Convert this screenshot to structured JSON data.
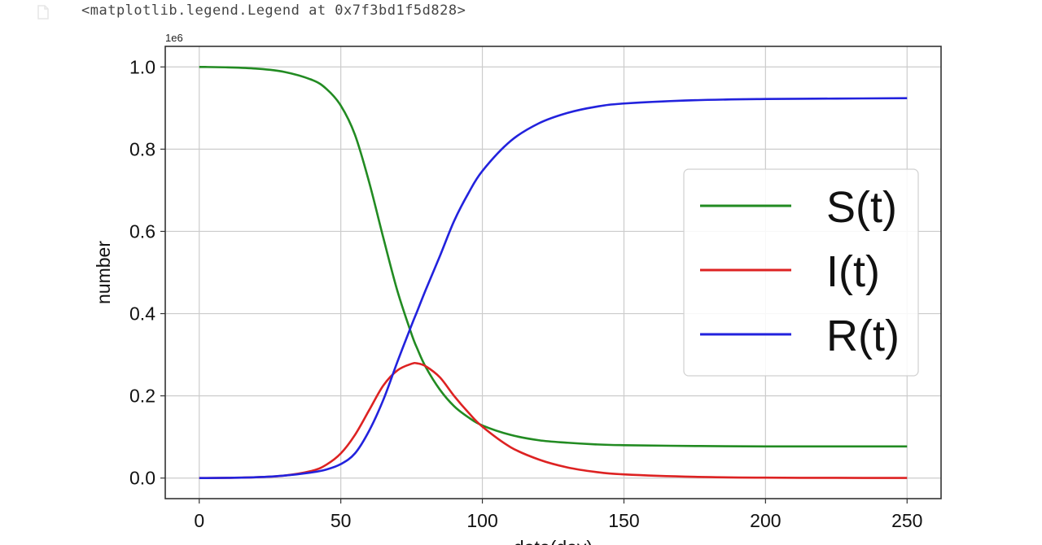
{
  "output": {
    "text": "<matplotlib.legend.Legend at 0x7f3bd1f5d828>"
  },
  "chart_data": {
    "type": "line",
    "title": "",
    "xlabel": "date(day)",
    "ylabel": "number",
    "y_offset_label": "1e6",
    "xlim": [
      -12,
      262
    ],
    "ylim": [
      -0.05,
      1.05
    ],
    "xticks": [
      0,
      50,
      100,
      150,
      200,
      250
    ],
    "xtick_labels": [
      "0",
      "50",
      "100",
      "150",
      "200",
      "250"
    ],
    "yticks": [
      0.0,
      0.2,
      0.4,
      0.6,
      0.8,
      1.0
    ],
    "ytick_labels": [
      "0.0",
      "0.2",
      "0.4",
      "0.6",
      "0.8",
      "1.0"
    ],
    "grid": true,
    "legend_position": "center-right",
    "x": [
      0,
      10,
      20,
      30,
      40,
      45,
      50,
      55,
      60,
      65,
      70,
      75,
      77,
      80,
      85,
      90,
      95,
      100,
      110,
      120,
      130,
      140,
      150,
      175,
      200,
      225,
      250
    ],
    "series": [
      {
        "name": "S(t)",
        "color": "#228b22",
        "values": [
          1.0,
          0.999,
          0.996,
          0.988,
          0.968,
          0.946,
          0.906,
          0.835,
          0.72,
          0.585,
          0.455,
          0.35,
          0.315,
          0.27,
          0.215,
          0.175,
          0.148,
          0.128,
          0.105,
          0.092,
          0.086,
          0.082,
          0.08,
          0.078,
          0.077,
          0.077,
          0.077
        ]
      },
      {
        "name": "I(t)",
        "color": "#dd2222",
        "values": [
          0.0,
          0.0005,
          0.002,
          0.006,
          0.018,
          0.033,
          0.06,
          0.105,
          0.165,
          0.225,
          0.262,
          0.278,
          0.279,
          0.272,
          0.245,
          0.2,
          0.16,
          0.125,
          0.075,
          0.045,
          0.026,
          0.015,
          0.009,
          0.003,
          0.001,
          0.0005,
          0.0003
        ]
      },
      {
        "name": "R(t)",
        "color": "#2222dd",
        "values": [
          0.0,
          0.0005,
          0.002,
          0.006,
          0.014,
          0.021,
          0.034,
          0.06,
          0.115,
          0.19,
          0.283,
          0.372,
          0.406,
          0.458,
          0.54,
          0.625,
          0.692,
          0.747,
          0.82,
          0.863,
          0.888,
          0.903,
          0.911,
          0.919,
          0.922,
          0.923,
          0.924
        ]
      }
    ]
  }
}
